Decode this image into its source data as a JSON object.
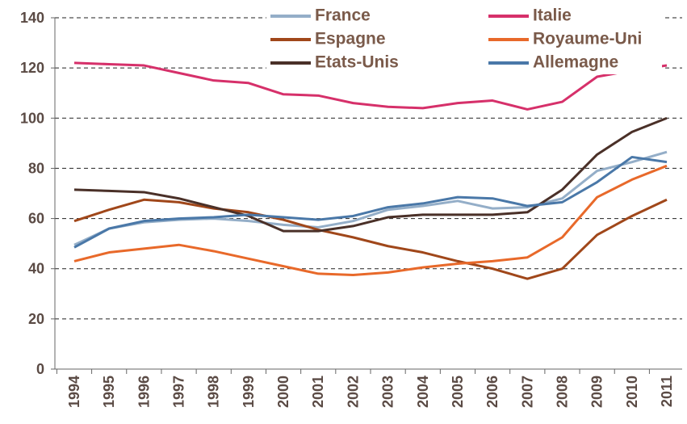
{
  "chart_data": {
    "type": "line",
    "categories": [
      "1994",
      "1995",
      "1996",
      "1997",
      "1998",
      "1999",
      "2000",
      "2001",
      "2002",
      "2003",
      "2004",
      "2005",
      "2006",
      "2007",
      "2008",
      "2009",
      "2010",
      "2011"
    ],
    "series": [
      {
        "name": "France",
        "color": "#94aec8",
        "values": [
          49.5,
          56,
          58.5,
          59.5,
          60,
          59,
          57.5,
          56.5,
          59,
          63.5,
          65,
          67,
          64,
          64.5,
          68,
          79,
          82.5,
          86.5
        ]
      },
      {
        "name": "Italie",
        "color": "#d6306a",
        "values": [
          122,
          121.5,
          121,
          118,
          115,
          114,
          109.5,
          109,
          106,
          104.5,
          104,
          106,
          107,
          103.5,
          106.5,
          116.5,
          119,
          121
        ]
      },
      {
        "name": "Espagne",
        "color": "#a0471a",
        "values": [
          59,
          63.5,
          67.5,
          66.5,
          64,
          62.5,
          59.5,
          55.5,
          52.5,
          49,
          46.5,
          43,
          40,
          36,
          40,
          53.5,
          61,
          67.5
        ]
      },
      {
        "name": "Royaume-Uni",
        "color": "#e8692a",
        "values": [
          43,
          46.5,
          48,
          49.5,
          47,
          44,
          41,
          38,
          37.5,
          38.5,
          40.5,
          42,
          43,
          44.5,
          52.5,
          68.5,
          75.5,
          81
        ]
      },
      {
        "name": "Etats-Unis",
        "color": "#4a3028",
        "values": [
          71.5,
          71,
          70.5,
          68,
          64.5,
          61,
          55,
          55,
          57,
          60.5,
          61.5,
          61.5,
          61.5,
          62.5,
          71.5,
          85.5,
          94.5,
          100
        ]
      },
      {
        "name": "Allemagne",
        "color": "#4a78a8",
        "values": [
          48.5,
          56,
          59,
          60,
          60.5,
          61.5,
          60.5,
          59.5,
          61,
          64.5,
          66,
          68.5,
          68,
          65,
          66.5,
          74.5,
          84.5,
          82.5
        ]
      }
    ],
    "ylim": [
      0,
      140
    ],
    "yticks": [
      0,
      20,
      40,
      60,
      80,
      100,
      120,
      140
    ],
    "grid": true,
    "legend_position": "top"
  }
}
